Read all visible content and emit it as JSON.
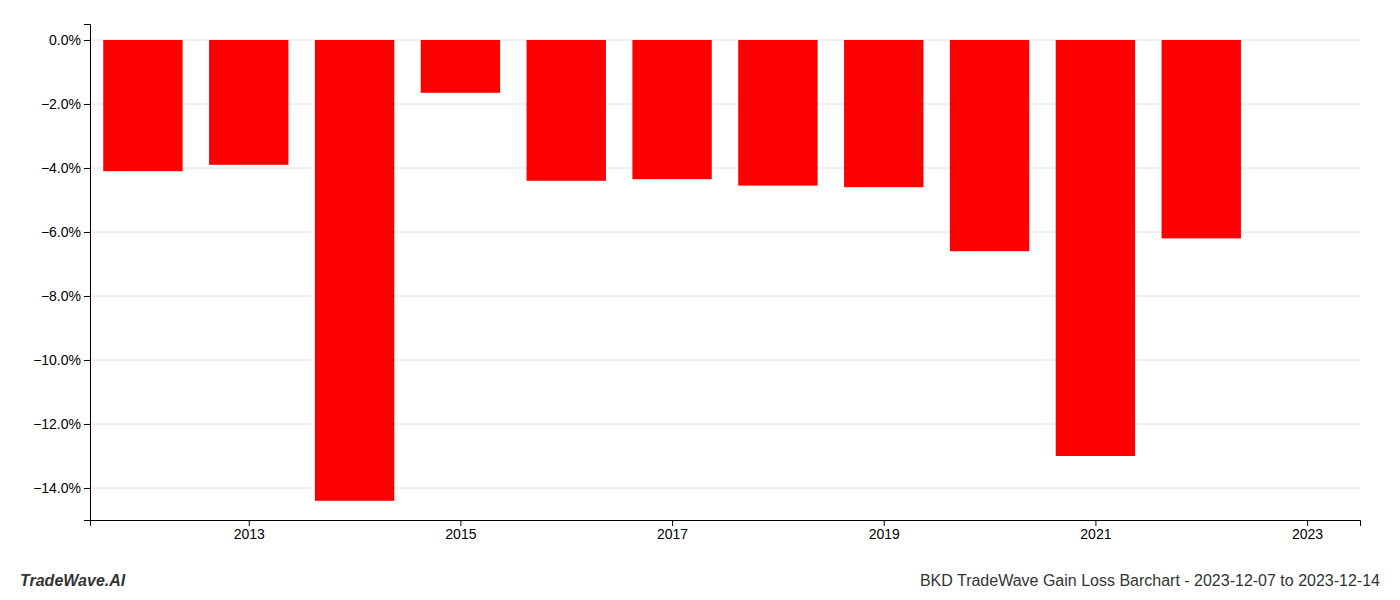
{
  "chart_data": {
    "type": "bar",
    "title": "BKD TradeWave Gain Loss Barchart - 2023-12-07 to 2023-12-14",
    "annotations": [
      "TradeWave.AI"
    ],
    "x": [
      2012,
      2013,
      2014,
      2015,
      2016,
      2017,
      2018,
      2019,
      2020,
      2021,
      2022
    ],
    "values": [
      -4.1,
      -3.9,
      -14.4,
      -1.65,
      -4.4,
      -4.35,
      -4.55,
      -4.6,
      -6.6,
      -13.0,
      -6.2
    ],
    "color": "#ff0000",
    "xlim": [
      2011.5,
      2023.5
    ],
    "xticks": [
      2013,
      2015,
      2017,
      2019,
      2021,
      2023
    ],
    "ylim": [
      -15.0,
      0.5
    ],
    "yticks": [
      {
        "value": 0.0,
        "label": "0.0%"
      },
      {
        "value": -2.0,
        "label": "−2.0%"
      },
      {
        "value": -4.0,
        "label": "−4.0%"
      },
      {
        "value": -6.0,
        "label": "−6.0%"
      },
      {
        "value": -8.0,
        "label": "−8.0%"
      },
      {
        "value": -10.0,
        "label": "−10.0%"
      },
      {
        "value": -12.0,
        "label": "−12.0%"
      },
      {
        "value": -14.0,
        "label": "−14.0%"
      }
    ],
    "grid": true
  }
}
